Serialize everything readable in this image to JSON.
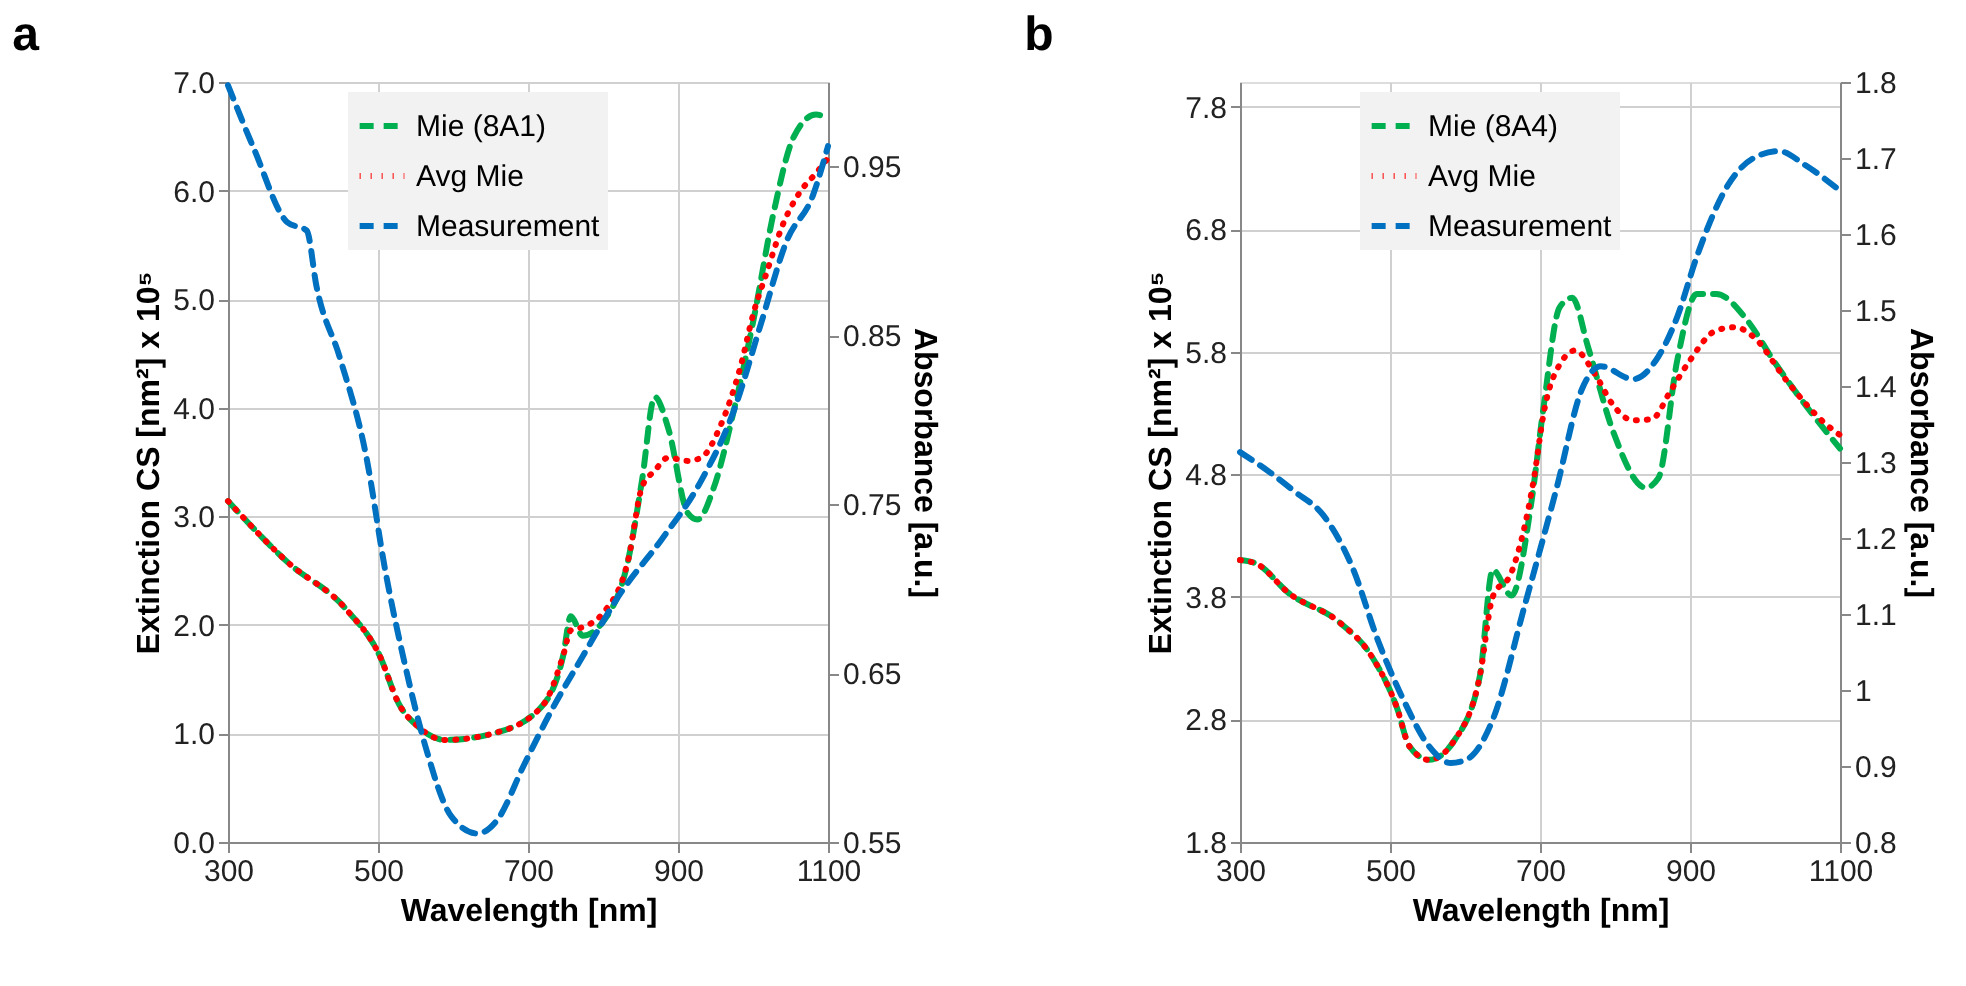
{
  "chart_data": [
    {
      "type": "line",
      "title": "a",
      "xlabel": "Wavelength [nm]",
      "ylabel": "Extinction CS [nm²] x 10⁵",
      "y2label": "Absorbance [a.u.]",
      "xlim": [
        300,
        1100
      ],
      "xticks": [
        300,
        500,
        700,
        900,
        1100
      ],
      "ylim": [
        0,
        7
      ],
      "yticks": [
        {
          "value": 0,
          "label": "0.0"
        },
        {
          "value": 1,
          "label": "1.0"
        },
        {
          "value": 2,
          "label": "2.0"
        },
        {
          "value": 3,
          "label": "3.0"
        },
        {
          "value": 4,
          "label": "4.0"
        },
        {
          "value": 5,
          "label": "5.0"
        },
        {
          "value": 6,
          "label": "6.0"
        },
        {
          "value": 7,
          "label": "7.0"
        }
      ],
      "y2lim": [
        0.55,
        1.0
      ],
      "y2ticks": [
        0.55,
        0.65,
        0.75,
        0.85,
        0.95
      ],
      "grid": true,
      "legend": "top left",
      "marker": "none",
      "series": [
        {
          "name": "Mie (8A1)",
          "color": "#00b050",
          "line_style": "dashed",
          "x": [
            300,
            379,
            458,
            502,
            528,
            554,
            589,
            659,
            721,
            747,
            757,
            773,
            799,
            834,
            852,
            869,
            887,
            913,
            926,
            948,
            975,
            1001,
            1027,
            1054,
            1084,
            1098
          ],
          "values": [
            3.14,
            2.58,
            2.14,
            1.72,
            1.27,
            1.06,
            0.94,
            1.01,
            1.27,
            1.72,
            2.08,
            1.9,
            2.02,
            2.61,
            3.33,
            4.1,
            3.81,
            3.03,
            2.97,
            3.27,
            3.99,
            4.82,
            5.78,
            6.49,
            6.7,
            6.67
          ]
        },
        {
          "name": "Avg Mie",
          "color": "#ff0000",
          "line_style": "dotted",
          "x": [
            300,
            379,
            458,
            502,
            528,
            554,
            589,
            659,
            721,
            747,
            757,
            773,
            799,
            834,
            852,
            869,
            887,
            913,
            931,
            957,
            983,
            1001,
            1018,
            1040,
            1062,
            1084,
            1098
          ],
          "values": [
            3.14,
            2.58,
            2.14,
            1.72,
            1.27,
            1.06,
            0.94,
            1.01,
            1.27,
            1.72,
            1.95,
            1.98,
            2.1,
            2.61,
            3.27,
            3.42,
            3.54,
            3.51,
            3.54,
            3.84,
            4.37,
            4.88,
            5.24,
            5.69,
            5.98,
            6.16,
            6.28
          ]
        },
        {
          "name": "Measurement",
          "color": "#0070c0",
          "line_style": "dashed",
          "axis": "y2",
          "x": [
            300,
            335,
            379,
            405,
            418,
            449,
            484,
            510,
            537,
            563,
            598,
            633,
            659,
            694,
            729,
            773,
            826,
            878,
            931,
            975,
            1010,
            1045,
            1080,
            1100
          ],
          "values": [
            0.998,
            0.96,
            0.917,
            0.912,
            0.879,
            0.837,
            0.779,
            0.71,
            0.653,
            0.607,
            0.565,
            0.555,
            0.563,
            0.595,
            0.626,
            0.66,
            0.699,
            0.729,
            0.764,
            0.806,
            0.856,
            0.906,
            0.933,
            0.962
          ]
        }
      ]
    },
    {
      "type": "line",
      "title": "b",
      "xlabel": "Wavelength [nm]",
      "ylabel": "Extinction CS [nm²] x 10⁵",
      "y2label": "Absorbance [a.u.]",
      "xlim": [
        300,
        1100
      ],
      "xticks": [
        300,
        500,
        700,
        900,
        1100
      ],
      "ylim": [
        1.8,
        8.0
      ],
      "yticks": [
        1.8,
        2.8,
        3.8,
        4.8,
        5.8,
        6.8,
        7.8
      ],
      "y2lim": [
        0.8,
        1.8
      ],
      "y2ticks": [
        0.8,
        0.9,
        1,
        1.1,
        1.2,
        1.3,
        1.4,
        1.5,
        1.6,
        1.7,
        1.8
      ],
      "grid": true,
      "legend": "top left",
      "marker": "none",
      "series": [
        {
          "name": "Mie (8A4)",
          "color": "#00b050",
          "line_style": "dashed",
          "x": [
            300,
            322,
            365,
            433,
            475,
            509,
            526,
            552,
            586,
            620,
            637,
            662,
            688,
            705,
            726,
            743,
            764,
            798,
            841,
            858,
            883,
            909,
            935,
            977,
            1011,
            1062,
            1100
          ],
          "values": [
            4.1,
            4.07,
            3.83,
            3.59,
            3.32,
            2.9,
            2.58,
            2.47,
            2.63,
            3.16,
            4.02,
            3.81,
            4.55,
            5.36,
            6.16,
            6.24,
            5.84,
            5.14,
            4.69,
            4.77,
            5.73,
            6.27,
            6.27,
            6.05,
            5.73,
            5.3,
            5.01
          ]
        },
        {
          "name": "Avg Mie",
          "color": "#ff0000",
          "line_style": "dotted",
          "x": [
            300,
            322,
            365,
            433,
            475,
            509,
            526,
            552,
            586,
            620,
            637,
            662,
            692,
            705,
            730,
            747,
            773,
            798,
            824,
            849,
            875,
            900,
            934,
            960,
            985,
            1028,
            1079,
            1100
          ],
          "values": [
            4.1,
            4.07,
            3.83,
            3.59,
            3.32,
            2.9,
            2.58,
            2.47,
            2.63,
            3.16,
            3.8,
            4.0,
            4.77,
            5.3,
            5.73,
            5.81,
            5.62,
            5.36,
            5.24,
            5.25,
            5.49,
            5.73,
            5.97,
            6.0,
            5.92,
            5.57,
            5.22,
            5.12
          ]
        },
        {
          "name": "Measurement",
          "color": "#0070c0",
          "line_style": "dashed",
          "axis": "y2",
          "x": [
            300,
            339,
            373,
            411,
            450,
            484,
            518,
            552,
            581,
            603,
            637,
            679,
            722,
            756,
            781,
            824,
            858,
            883,
            909,
            951,
            985,
            1019,
            1053,
            1100
          ],
          "values": [
            1.313,
            1.287,
            1.261,
            1.23,
            1.161,
            1.065,
            0.987,
            0.926,
            0.904,
            0.909,
            0.961,
            1.109,
            1.265,
            1.396,
            1.426,
            1.409,
            1.439,
            1.491,
            1.57,
            1.665,
            1.7,
            1.709,
            1.691,
            1.657
          ]
        }
      ]
    }
  ]
}
